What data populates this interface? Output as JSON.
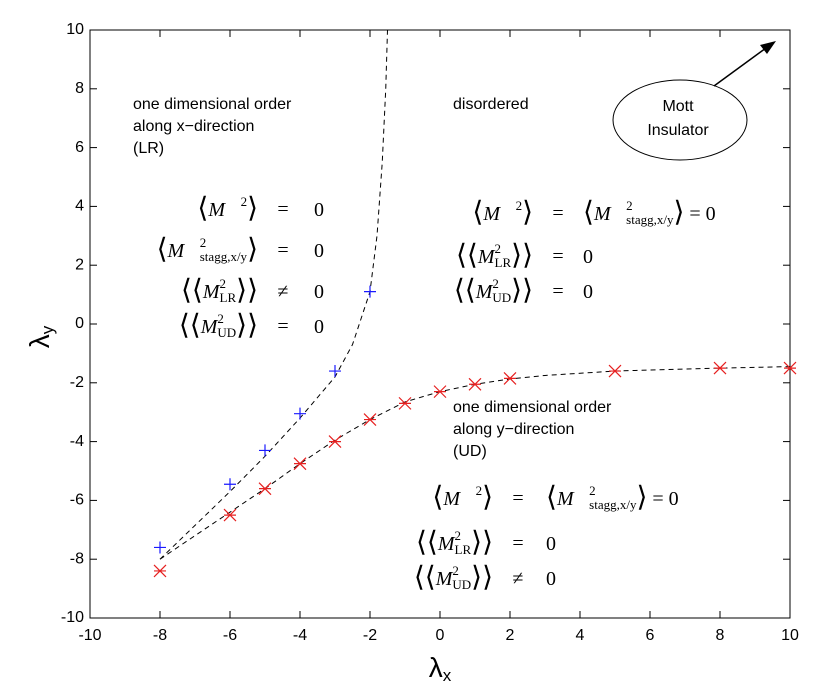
{
  "chart_data": {
    "type": "scatter",
    "xlabel": "λ",
    "xlabel_sub": "x",
    "ylabel": "λ",
    "ylabel_sub": "y",
    "xlim": [
      -10,
      10
    ],
    "ylim": [
      -10,
      10
    ],
    "xticks": [
      -10,
      -8,
      -6,
      -4,
      -2,
      0,
      2,
      4,
      6,
      8,
      10
    ],
    "yticks": [
      -10,
      -8,
      -6,
      -4,
      -2,
      0,
      2,
      4,
      6,
      8,
      10
    ],
    "series": [
      {
        "marker": "+",
        "color": "#1a1aff",
        "x": [
          -8,
          -6,
          -5,
          -4,
          -3,
          -2
        ],
        "values": [
          -7.6,
          -5.45,
          -4.3,
          -3.05,
          -1.6,
          1.1
        ]
      },
      {
        "marker": "x",
        "color": "#e62020",
        "x": [
          -8,
          -6,
          -5,
          -4,
          -3,
          -2,
          -1,
          0,
          1,
          2,
          5,
          8,
          10
        ],
        "values": [
          -8.4,
          -6.5,
          -5.6,
          -4.75,
          -4.0,
          -3.25,
          -2.7,
          -2.3,
          -2.05,
          -1.85,
          -1.6,
          -1.5,
          -1.5
        ]
      }
    ],
    "curves": [
      {
        "color": "#000000",
        "x": [
          -8,
          -7,
          -6,
          -5,
          -4,
          -3,
          -2.5,
          -2,
          -1.8,
          -1.65,
          -1.55,
          -1.5
        ],
        "values": [
          -8,
          -6.85,
          -5.7,
          -4.5,
          -3.2,
          -1.8,
          -0.7,
          1.1,
          3,
          5.5,
          8,
          10
        ]
      },
      {
        "color": "#000000",
        "x": [
          -8,
          -7,
          -6,
          -5,
          -4,
          -3,
          -2,
          -1,
          0,
          1,
          2,
          3,
          5,
          8,
          10
        ],
        "values": [
          -8,
          -7.2,
          -6.4,
          -5.6,
          -4.75,
          -3.95,
          -3.25,
          -2.65,
          -2.3,
          -2.05,
          -1.87,
          -1.75,
          -1.6,
          -1.5,
          -1.45
        ]
      }
    ],
    "annotations": {
      "lr_label": [
        "one dimensional order",
        "along x−direction",
        "(LR)"
      ],
      "disordered": "disordered",
      "ud_label": [
        "one dimensional order",
        "along y−direction",
        "(UD)"
      ],
      "mott": [
        "Mott",
        "Insulator"
      ],
      "lr_equations": [
        {
          "lhs": {
            "pre": "⟨",
            "base": "M⃗",
            "sup": "2",
            "post": "⟩"
          },
          "op": "=",
          "rhs": [
            "0"
          ]
        },
        {
          "lhs": {
            "pre": "⟨",
            "base": "M⃗",
            "sup": "2",
            "sub": "stagg,x/y",
            "post": "⟩"
          },
          "op": "=",
          "rhs": [
            "0"
          ]
        },
        {
          "lhs": {
            "pre": "⟨⟨",
            "base": "M",
            "sup": "2",
            "sub": "LR",
            "post": "⟩⟩"
          },
          "op": "≠",
          "rhs": [
            "0"
          ]
        },
        {
          "lhs": {
            "pre": "⟨⟨",
            "base": "M",
            "sup": "2",
            "sub": "UD",
            "post": "⟩⟩"
          },
          "op": "=",
          "rhs": [
            "0"
          ]
        }
      ],
      "dis_equations": [
        {
          "lhs": {
            "pre": "⟨",
            "base": "M⃗",
            "sup": "2",
            "post": "⟩"
          },
          "op": "=",
          "rhs": [
            {
              "pre": "⟨",
              "base": "M⃗",
              "sup": "2",
              "sub": "stagg,x/y",
              "post": "⟩"
            },
            " = 0"
          ]
        },
        {
          "lhs": {
            "pre": "⟨⟨",
            "base": "M",
            "sup": "2",
            "sub": "LR",
            "post": "⟩⟩"
          },
          "op": "=",
          "rhs": [
            "0"
          ]
        },
        {
          "lhs": {
            "pre": "⟨⟨",
            "base": "M",
            "sup": "2",
            "sub": "UD",
            "post": "⟩⟩"
          },
          "op": "=",
          "rhs": [
            "0"
          ]
        }
      ],
      "ud_equations": [
        {
          "lhs": {
            "pre": "⟨",
            "base": "M⃗",
            "sup": "2",
            "post": "⟩"
          },
          "op": "=",
          "rhs": [
            {
              "pre": "⟨",
              "base": "M⃗",
              "sup": "2",
              "sub": "stagg,x/y",
              "post": "⟩"
            },
            " = 0"
          ]
        },
        {
          "lhs": {
            "pre": "⟨⟨",
            "base": "M",
            "sup": "2",
            "sub": "LR",
            "post": "⟩⟩"
          },
          "op": "=",
          "rhs": [
            "0"
          ]
        },
        {
          "lhs": {
            "pre": "⟨⟨",
            "base": "M",
            "sup": "2",
            "sub": "UD",
            "post": "⟩⟩"
          },
          "op": "≠",
          "rhs": [
            "0"
          ]
        }
      ]
    }
  }
}
